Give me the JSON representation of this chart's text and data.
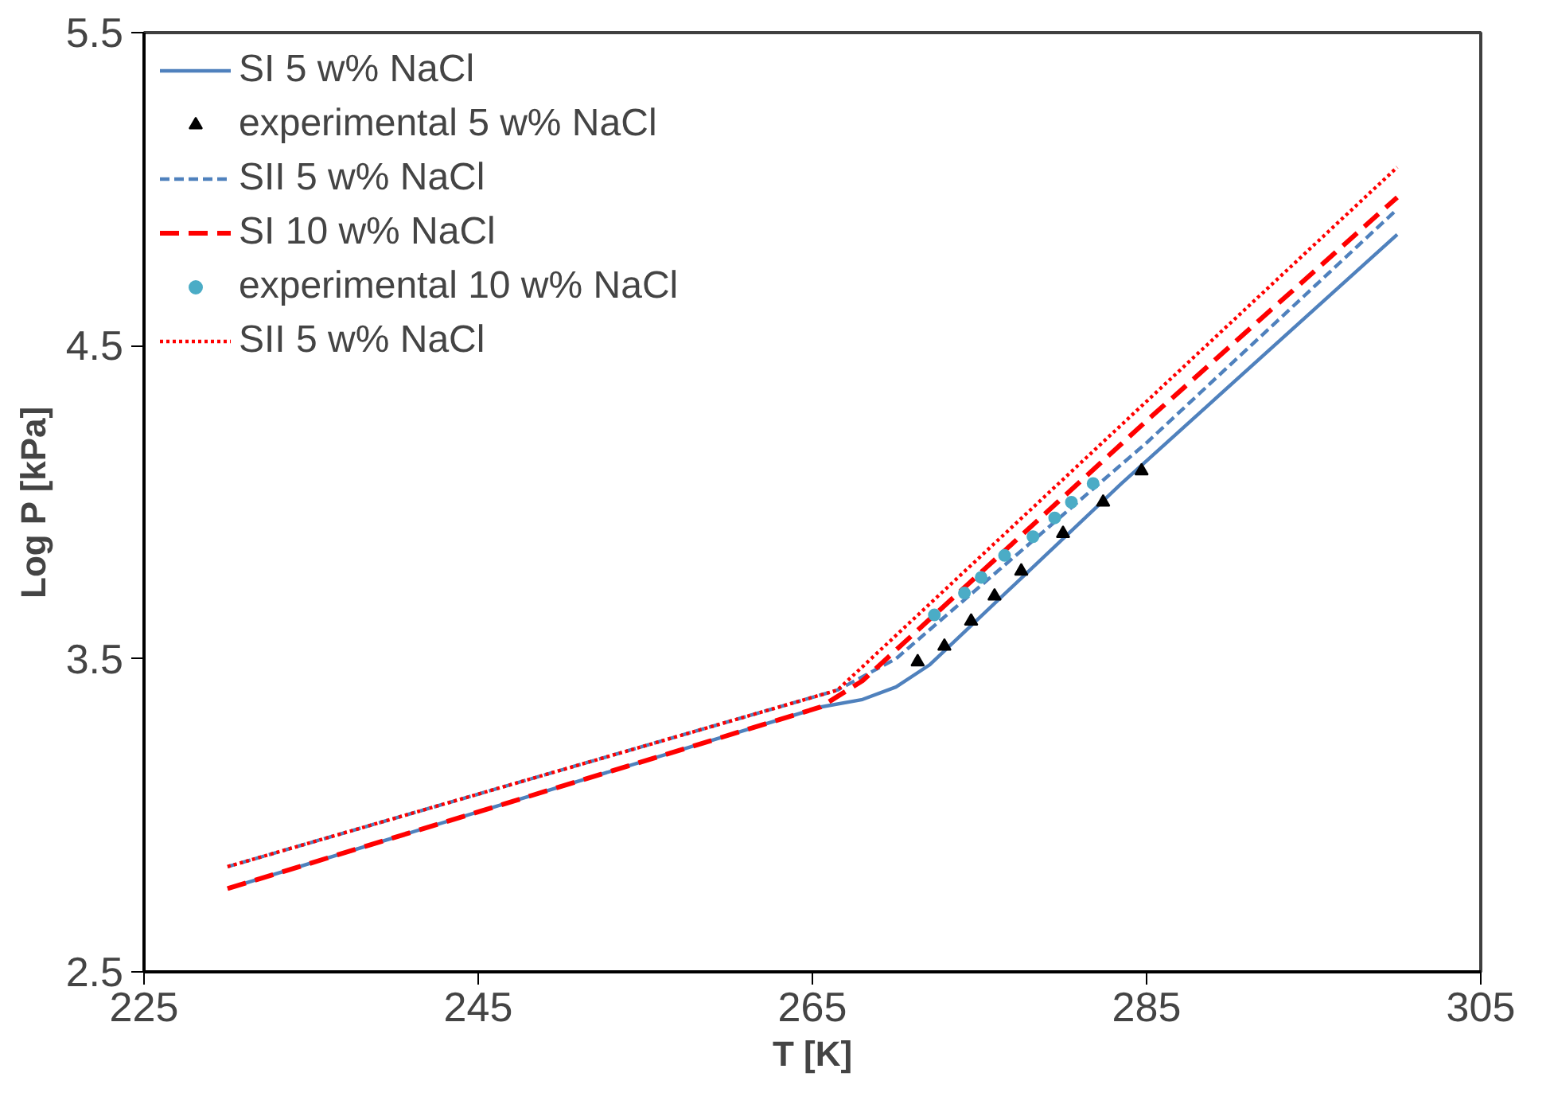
{
  "chart_data": {
    "type": "line",
    "xlabel": "T [K]",
    "ylabel": "Log P [kPa]",
    "xlim": [
      225,
      305
    ],
    "ylim": [
      2.5,
      5.5
    ],
    "xticks": [
      225,
      245,
      265,
      285,
      305
    ],
    "yticks": [
      2.5,
      3.5,
      4.5,
      5.5
    ],
    "grid": false,
    "legend": "top left",
    "series": [
      {
        "name": "SI 5 w% NaCl",
        "line_style": "solid",
        "color": "#4f81bd",
        "x": [
          230,
          265.5,
          268,
          270,
          272,
          283.5,
          300
        ],
        "values": [
          2.766,
          3.346,
          3.37,
          3.41,
          3.48,
          4.06,
          4.855
        ]
      },
      {
        "name": "experimental 5 w% NaCl",
        "type": "scatter",
        "marker": "triangle",
        "color": "#000000",
        "x": [
          271.3,
          272.9,
          274.5,
          275.9,
          277.5,
          280.0,
          282.4,
          284.7
        ],
        "values": [
          3.49,
          3.54,
          3.62,
          3.7,
          3.78,
          3.9,
          4.0,
          4.1
        ]
      },
      {
        "name": "SII 5 w% NaCl",
        "line_style": "dashed",
        "color": "#4f81bd",
        "x": [
          230,
          266.5,
          270,
          285,
          300
        ],
        "values": [
          2.836,
          3.4,
          3.5,
          4.19,
          4.936
        ]
      },
      {
        "name": "SI 10 w% NaCl",
        "line_style": "longdash",
        "color": "#ff0000",
        "x": [
          230,
          265.5,
          268,
          285,
          300
        ],
        "values": [
          2.766,
          3.346,
          3.43,
          4.26,
          4.974
        ]
      },
      {
        "name": "experimental 10 w% NaCl",
        "type": "scatter",
        "marker": "circle",
        "color": "#4bacc6",
        "x": [
          272.3,
          274.1,
          275.1,
          276.5,
          278.2,
          279.5,
          280.5,
          281.8
        ],
        "values": [
          3.64,
          3.71,
          3.76,
          3.83,
          3.89,
          3.95,
          4.0,
          4.06
        ]
      },
      {
        "name": "SII 5 w% NaCl",
        "line_style": "dotted",
        "color": "#ff0000",
        "x": [
          230,
          266.5,
          300
        ],
        "values": [
          2.836,
          3.4,
          5.07
        ]
      }
    ]
  }
}
